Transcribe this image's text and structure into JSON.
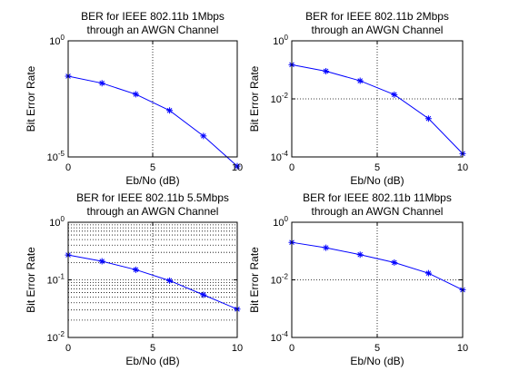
{
  "chart_data": [
    {
      "type": "line",
      "title": [
        "BER for IEEE 802.11b 1Mbps",
        "through an AWGN Channel"
      ],
      "xlabel": "Eb/No (dB)",
      "ylabel": "Bit Error Rate",
      "x": [
        0,
        2,
        4,
        6,
        8,
        10
      ],
      "series": [
        {
          "values": [
            0.03,
            0.015,
            0.005,
            0.001,
            8e-05,
            4e-06
          ]
        }
      ],
      "xlim": [
        0,
        10
      ],
      "xticks": [
        "0",
        "5",
        "10"
      ],
      "yscale": "log",
      "ylim": [
        1e-05,
        1
      ],
      "yticks": [
        {
          "base": "10",
          "exp": "0"
        },
        {
          "base": "10",
          "exp": "-5"
        }
      ],
      "ytick_values": [
        1,
        1e-05
      ],
      "grid": "dotted",
      "minor_grid": false,
      "color": "#0000ff",
      "marker": "*"
    },
    {
      "type": "line",
      "title": [
        "BER for IEEE 802.11b 2Mbps",
        "through an AWGN Channel"
      ],
      "xlabel": "Eb/No (dB)",
      "ylabel": "Bit Error Rate",
      "x": [
        0,
        2,
        4,
        6,
        8,
        10
      ],
      "series": [
        {
          "values": [
            0.15,
            0.09,
            0.042,
            0.014,
            0.0021,
            0.00013
          ]
        }
      ],
      "xlim": [
        0,
        10
      ],
      "xticks": [
        "0",
        "5",
        "10"
      ],
      "yscale": "log",
      "ylim": [
        0.0001,
        1
      ],
      "yticks": [
        {
          "base": "10",
          "exp": "0"
        },
        {
          "base": "10",
          "exp": "-2"
        },
        {
          "base": "10",
          "exp": "-4"
        }
      ],
      "ytick_values": [
        1,
        0.01,
        0.0001
      ],
      "grid": "dotted",
      "minor_grid": false,
      "color": "#0000ff",
      "marker": "*"
    },
    {
      "type": "line",
      "title": [
        "BER for IEEE 802.11b 5.5Mbps",
        "through an AWGN Channel"
      ],
      "xlabel": "Eb/No (dB)",
      "ylabel": "Bit Error Rate",
      "x": [
        0,
        2,
        4,
        6,
        8,
        10
      ],
      "series": [
        {
          "values": [
            0.27,
            0.21,
            0.15,
            0.097,
            0.055,
            0.031
          ]
        }
      ],
      "xlim": [
        0,
        10
      ],
      "xticks": [
        "0",
        "5",
        "10"
      ],
      "yscale": "log",
      "ylim": [
        0.01,
        1
      ],
      "yticks": [
        {
          "base": "10",
          "exp": "0"
        },
        {
          "base": "10",
          "exp": "-1"
        },
        {
          "base": "10",
          "exp": "-2"
        }
      ],
      "ytick_values": [
        1,
        0.1,
        0.01
      ],
      "grid": "dotted",
      "minor_grid": true,
      "color": "#0000ff",
      "marker": "*"
    },
    {
      "type": "line",
      "title": [
        "BER for IEEE 802.11b 11Mbps",
        "through an AWGN Channel"
      ],
      "xlabel": "Eb/No (dB)",
      "ylabel": "Bit Error Rate",
      "x": [
        0,
        2,
        4,
        6,
        8,
        10
      ],
      "series": [
        {
          "values": [
            0.2,
            0.13,
            0.075,
            0.04,
            0.017,
            0.0045
          ]
        }
      ],
      "xlim": [
        0,
        10
      ],
      "xticks": [
        "0",
        "5",
        "10"
      ],
      "yscale": "log",
      "ylim": [
        0.0001,
        1
      ],
      "yticks": [
        {
          "base": "10",
          "exp": "0"
        },
        {
          "base": "10",
          "exp": "-2"
        },
        {
          "base": "10",
          "exp": "-4"
        }
      ],
      "ytick_values": [
        1,
        0.01,
        0.0001
      ],
      "grid": "dotted",
      "minor_grid": false,
      "color": "#0000ff",
      "marker": "*"
    }
  ]
}
